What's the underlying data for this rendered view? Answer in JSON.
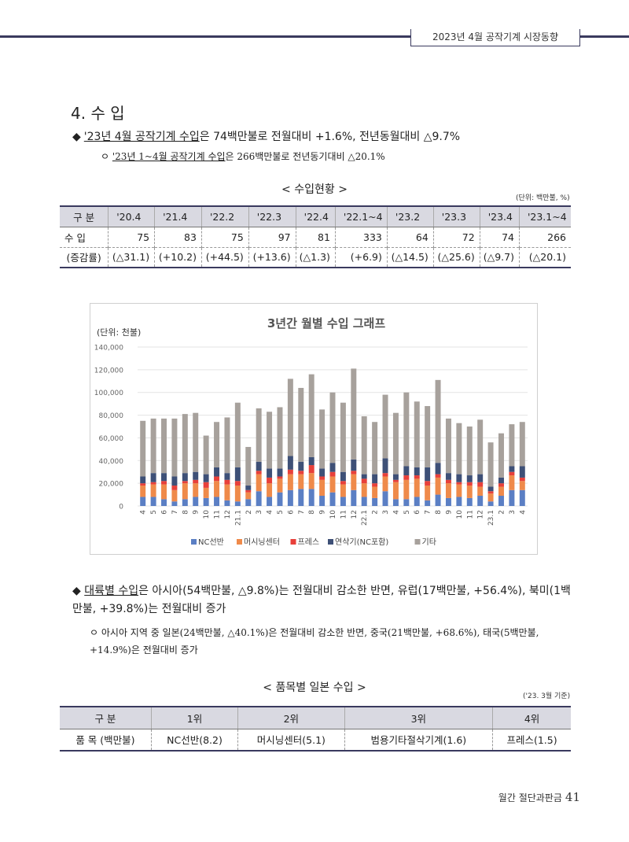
{
  "header": {
    "tag": "2023년 4월 공작기계 시장동향"
  },
  "section": {
    "title": "4. 수 입",
    "bullet1": {
      "marker": "◆",
      "underlined": "'23년 4월 공작기계 수입",
      "rest": "은 74백만불로 전월대비 +1.6%, 전년동월대비 △9.7%"
    },
    "bullet2": {
      "marker": "ㅇ",
      "underlined": "'23년 1~4월 공작기계 수입",
      "rest": "은 266백만불로 전년동기대비 △20.1%"
    }
  },
  "table1": {
    "caption": "< 수입현황 >",
    "unit": "(단위: 백만불, %)",
    "headers": [
      "구 분",
      "'20.4",
      "'21.4",
      "'22.2",
      "'22.3",
      "'22.4",
      "'22.1~4",
      "'23.2",
      "'23.3",
      "'23.4",
      "'23.1~4"
    ],
    "rows": [
      [
        "수 입",
        "75",
        "83",
        "75",
        "97",
        "81",
        "333",
        "64",
        "72",
        "74",
        "266"
      ],
      [
        "(증감률)",
        "(△31.1)",
        "(+10.2)",
        "(+44.5)",
        "(+13.6)",
        "(△1.3)",
        "(+6.9)",
        "(△14.5)",
        "(△25.6)",
        "(△9.7)",
        "(△20.1)"
      ]
    ]
  },
  "chart_data": {
    "type": "bar",
    "stacked": true,
    "title": "3년간 월별 수입 그래프",
    "ylabel": "(단위: 천불)",
    "ylim": [
      0,
      140000
    ],
    "yticks": [
      "0",
      "20,000",
      "40,000",
      "60,000",
      "80,000",
      "100,000",
      "120,000",
      "140,000"
    ],
    "categories": [
      "4",
      "5",
      "6",
      "7",
      "8",
      "9",
      "10",
      "11",
      "12",
      "21.1",
      "2",
      "3",
      "4",
      "5",
      "6",
      "7",
      "8",
      "9",
      "10",
      "11",
      "12",
      "22.1",
      "2",
      "3",
      "4",
      "5",
      "6",
      "7",
      "8",
      "9",
      "10",
      "11",
      "12",
      "23.1",
      "2",
      "3",
      "4"
    ],
    "series": [
      {
        "name": "NC선반",
        "color": "#5b7fc4",
        "values": [
          8000,
          8000,
          6000,
          4000,
          6000,
          8000,
          7000,
          8000,
          5000,
          4000,
          6000,
          13000,
          8000,
          12000,
          14000,
          15000,
          15000,
          9000,
          12000,
          8000,
          14000,
          8000,
          7000,
          13000,
          6000,
          6000,
          8000,
          5000,
          10000,
          7000,
          8000,
          7000,
          9000,
          4000,
          9000,
          14000,
          14000
        ]
      },
      {
        "name": "머시닝센터",
        "color": "#ef8a4a",
        "values": [
          10000,
          11000,
          13000,
          10000,
          14000,
          12000,
          9000,
          14000,
          14000,
          14000,
          6000,
          15000,
          12000,
          12000,
          14000,
          13000,
          14000,
          14000,
          14000,
          11000,
          14000,
          12000,
          10000,
          13000,
          15000,
          17000,
          16000,
          13000,
          15000,
          13000,
          11000,
          11000,
          8000,
          7000,
          8000,
          13000,
          8000
        ]
      },
      {
        "name": "프레스",
        "color": "#e8403a",
        "values": [
          2000,
          2000,
          3000,
          4000,
          2000,
          3000,
          5000,
          4000,
          4000,
          4000,
          2000,
          3000,
          5000,
          2000,
          4000,
          3000,
          7000,
          3000,
          4000,
          3000,
          3000,
          4000,
          3000,
          3000,
          2000,
          4000,
          3000,
          4000,
          3000,
          3000,
          2000,
          3000,
          4000,
          2000,
          3000,
          3000,
          3000
        ]
      },
      {
        "name": "연삭기(NC포함)",
        "color": "#3e5077",
        "values": [
          6000,
          8000,
          7000,
          8000,
          7000,
          7000,
          7000,
          8000,
          6000,
          12000,
          4000,
          8000,
          8000,
          7000,
          12000,
          8000,
          7000,
          7000,
          8000,
          8000,
          10000,
          4000,
          8000,
          13000,
          5000,
          8000,
          7000,
          12000,
          10000,
          6000,
          7000,
          6000,
          7000,
          4000,
          5000,
          5000,
          10000
        ]
      },
      {
        "name": "기타",
        "color": "#a7a19c",
        "values": [
          49000,
          48000,
          48000,
          51000,
          52000,
          52000,
          34000,
          40000,
          49000,
          57000,
          34000,
          47000,
          50000,
          54000,
          68000,
          65000,
          73000,
          52000,
          62000,
          61000,
          80000,
          51000,
          46000,
          56000,
          54000,
          65000,
          58000,
          54000,
          73000,
          48000,
          45000,
          43000,
          48000,
          39000,
          39000,
          37000,
          39000
        ]
      }
    ],
    "legend": "bottom",
    "grid": true
  },
  "bullet3": {
    "marker": "◆",
    "underlined1": "대륙별 수입",
    "text1": "은 아시아(54백만불, △9.8%)는 전월대비 감소한 반면, 유럽(17백만불, +56.4%), 북미(1백만불, +39.8%)는 전월대비 증가"
  },
  "bullet4": {
    "marker": "ㅇ",
    "text": "아시아 지역 중 일본(24백만불, △40.1%)은 전월대비 감소한 반면, 중국(21백만불, +68.6%), 태국(5백만불, +14.9%)은 전월대비 증가"
  },
  "table2": {
    "caption": "< 품목별 일본 수입 >",
    "unit": "('23. 3월 기준)",
    "headers": [
      "구 분",
      "1위",
      "2위",
      "3위",
      "4위"
    ],
    "row": [
      "품 목 (백만불)",
      "NC선반(8.2)",
      "머시닝센터(5.1)",
      "범용기타절삭기계(1.6)",
      "프레스(1.5)"
    ]
  },
  "footer": {
    "magazine": "월간 절단과판금",
    "page": "41"
  }
}
